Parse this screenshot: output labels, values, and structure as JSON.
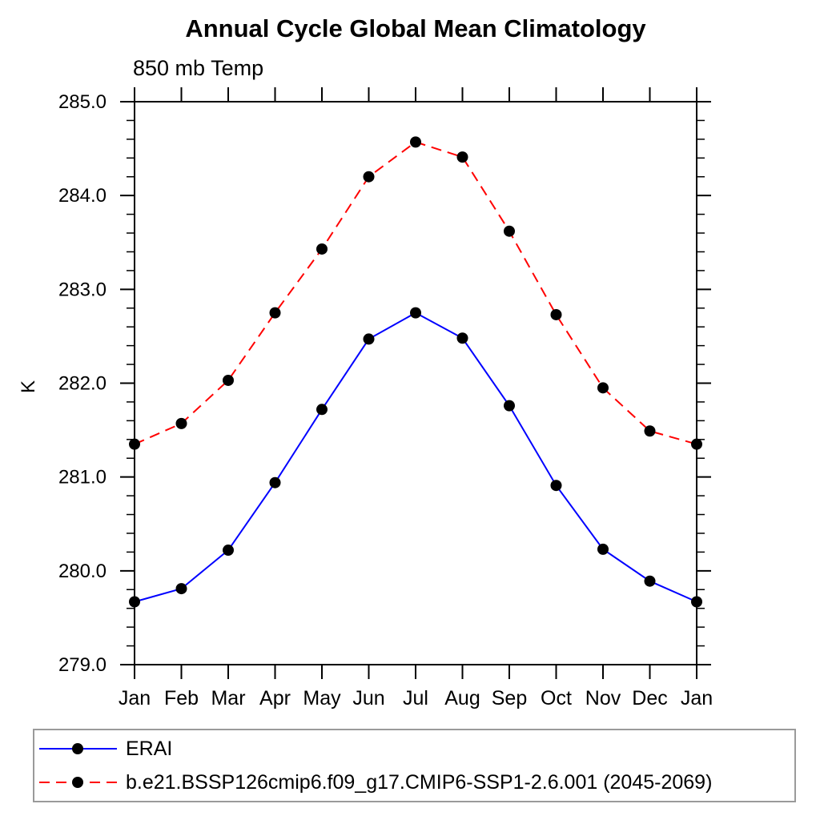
{
  "chart_data": {
    "type": "line",
    "title": "Annual Cycle Global Mean Climatology",
    "subtitle": "850 mb Temp",
    "ylabel": "K",
    "xlabel": "",
    "categories": [
      "Jan",
      "Feb",
      "Mar",
      "Apr",
      "May",
      "Jun",
      "Jul",
      "Aug",
      "Sep",
      "Oct",
      "Nov",
      "Dec",
      "Jan"
    ],
    "ylim": [
      279.0,
      285.0
    ],
    "y_major_tick_labels": [
      "279.0",
      "280.0",
      "281.0",
      "282.0",
      "283.0",
      "284.0",
      "285.0"
    ],
    "y_major_tick_values": [
      279,
      280,
      281,
      282,
      283,
      284,
      285
    ],
    "y_minor_step": 0.2,
    "grid": false,
    "legend_position": "bottom",
    "frame_color": "#000000",
    "marker_color": "#000000",
    "series": [
      {
        "name": "ERAI",
        "color": "#0000ff",
        "style": "solid",
        "marker": "circle",
        "values": [
          279.67,
          279.81,
          280.22,
          280.94,
          281.72,
          282.47,
          282.75,
          282.48,
          281.76,
          280.91,
          280.23,
          279.89,
          279.67
        ]
      },
      {
        "name": "b.e21.BSSP126cmip6.f09_g17.CMIP6-SSP1-2.6.001 (2045-2069)",
        "color": "#ff0000",
        "style": "dashed",
        "marker": "circle",
        "values": [
          281.35,
          281.57,
          282.03,
          282.75,
          283.43,
          284.2,
          284.57,
          284.41,
          283.62,
          282.73,
          281.95,
          281.49,
          281.35
        ]
      }
    ]
  }
}
